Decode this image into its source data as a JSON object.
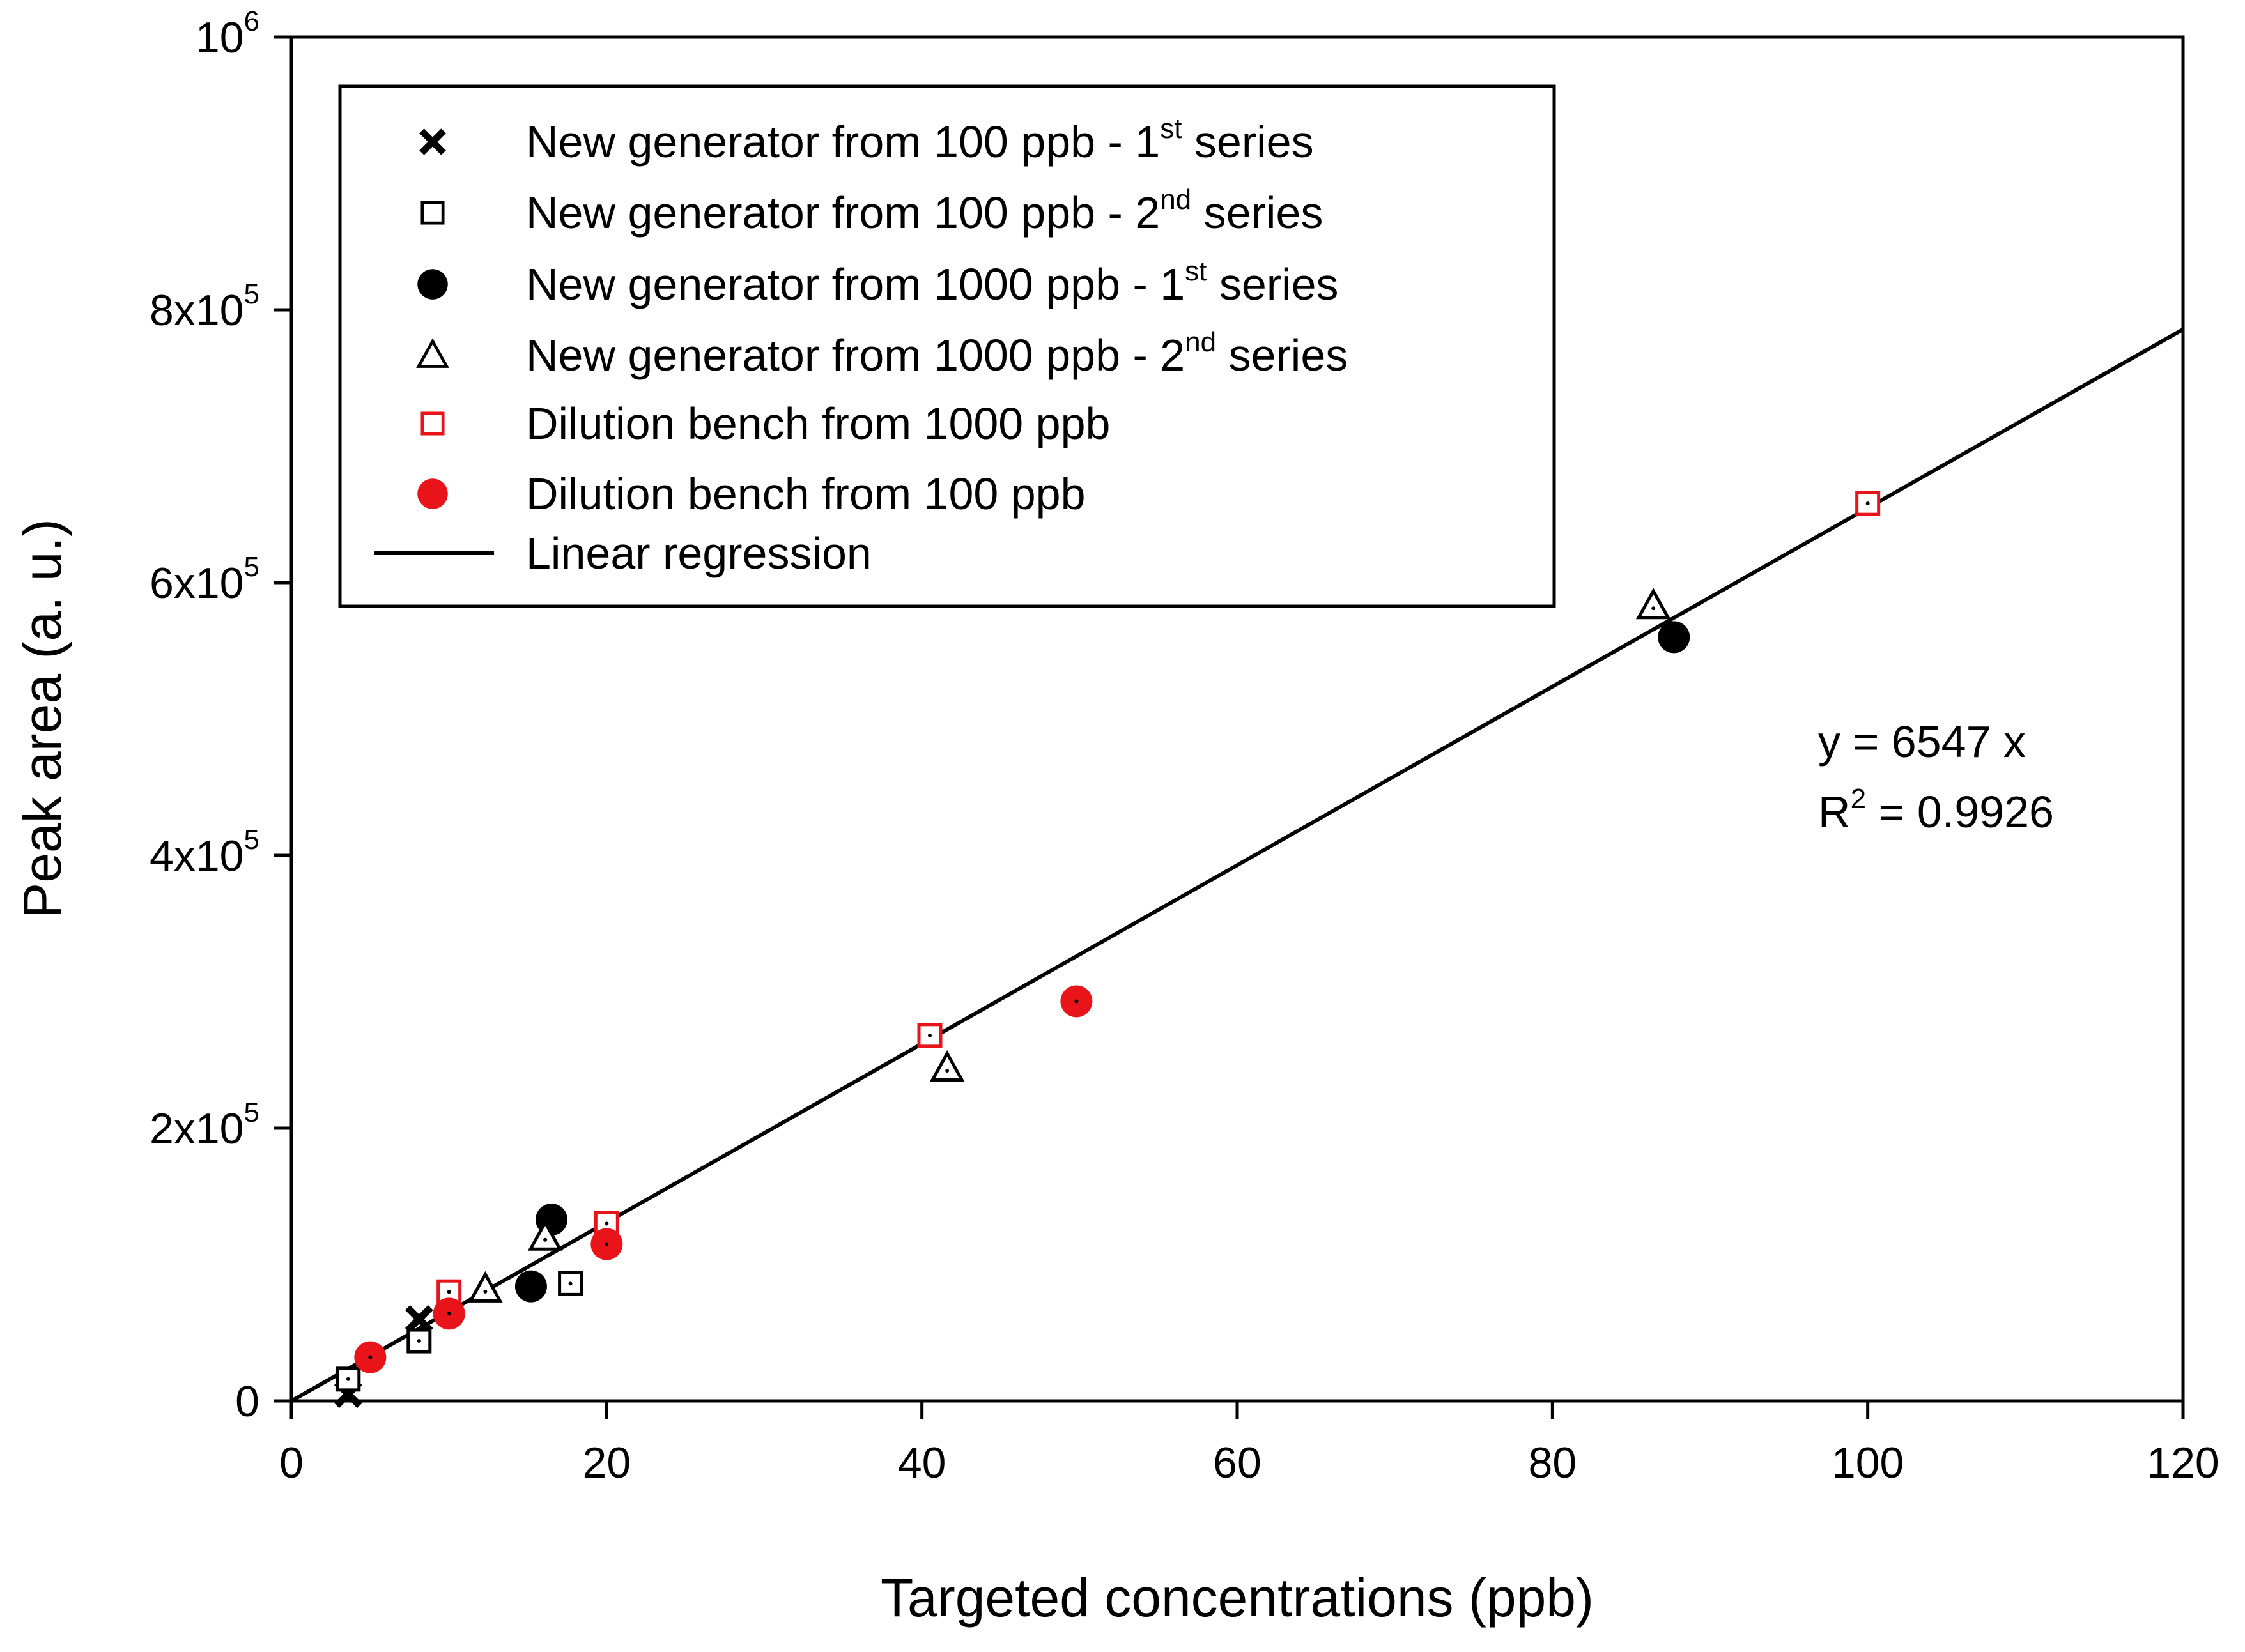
{
  "chart_data": {
    "type": "scatter",
    "xlabel": "Targeted concentrations (ppb)",
    "ylabel": "Peak area (a. u.)",
    "xlim": [
      0,
      120
    ],
    "ylim": [
      0,
      1000000
    ],
    "grid": false,
    "legend_position": "top-left",
    "x_ticks": [
      0,
      20,
      40,
      60,
      80,
      100,
      120
    ],
    "x_tick_labels": [
      "0",
      "20",
      "40",
      "60",
      "80",
      "100",
      "120"
    ],
    "y_ticks": [
      0,
      200000,
      400000,
      600000,
      800000,
      1000000
    ],
    "y_tick_labels": [
      {
        "base": "0",
        "exp": ""
      },
      {
        "base": "2x10",
        "exp": "5"
      },
      {
        "base": "4x10",
        "exp": "5"
      },
      {
        "base": "6x10",
        "exp": "5"
      },
      {
        "base": "8x10",
        "exp": "5"
      },
      {
        "base": "10",
        "exp": "6"
      }
    ],
    "series": [
      {
        "name": "New generator from 100 ppb - 1st series",
        "legend": {
          "text": "New generator from 100 ppb - 1",
          "sup": "st",
          "tail": " series"
        },
        "marker": "x",
        "color": "#000000",
        "points": [
          [
            3.6,
            5000
          ],
          [
            8.1,
            60000
          ]
        ]
      },
      {
        "name": "New generator from 100 ppb - 2nd series",
        "legend": {
          "text": "New generator from 100 ppb - 2",
          "sup": "nd",
          "tail": " series"
        },
        "marker": "square-open",
        "color": "#000000",
        "points": [
          [
            3.6,
            16000
          ],
          [
            8.1,
            44000
          ],
          [
            17.7,
            86000
          ]
        ]
      },
      {
        "name": "New generator from 1000 ppb - 1st series",
        "legend": {
          "text": "New generator from 1000 ppb - 1",
          "sup": "st",
          "tail": " series"
        },
        "marker": "circle-filled",
        "color": "#000000",
        "points": [
          [
            15.2,
            84000
          ],
          [
            16.5,
            133000
          ],
          [
            87.7,
            560000
          ]
        ]
      },
      {
        "name": "New generator from 1000 ppb - 2nd series",
        "legend": {
          "text": "New generator from 1000 ppb - 2",
          "sup": "nd",
          "tail": " series"
        },
        "marker": "triangle-open",
        "color": "#000000",
        "points": [
          [
            12.3,
            82000
          ],
          [
            16.1,
            120000
          ],
          [
            41.6,
            244000
          ],
          [
            86.4,
            583000
          ]
        ]
      },
      {
        "name": "Dilution bench from 1000 ppb",
        "legend": {
          "text": "Dilution bench from 1000 ppb",
          "sup": "",
          "tail": ""
        },
        "marker": "square-open",
        "color": "#e8141a",
        "points": [
          [
            10,
            80000
          ],
          [
            20,
            130000
          ],
          [
            40.5,
            268000
          ],
          [
            100,
            658000
          ]
        ]
      },
      {
        "name": "Dilution bench from 100 ppb",
        "legend": {
          "text": "Dilution bench from 100 ppb",
          "sup": "",
          "tail": ""
        },
        "marker": "circle-filled",
        "color": "#e8141a",
        "points": [
          [
            5,
            32000
          ],
          [
            10,
            64000
          ],
          [
            20,
            115000
          ],
          [
            49.8,
            293000
          ]
        ]
      }
    ],
    "regression": {
      "name": "Linear regression",
      "slope": 6547,
      "x_range": [
        0,
        120
      ],
      "equation_text": "y = 6547 x",
      "r2_label": "R",
      "r2_sup": "2",
      "r2_value": " = 0.9926"
    }
  }
}
